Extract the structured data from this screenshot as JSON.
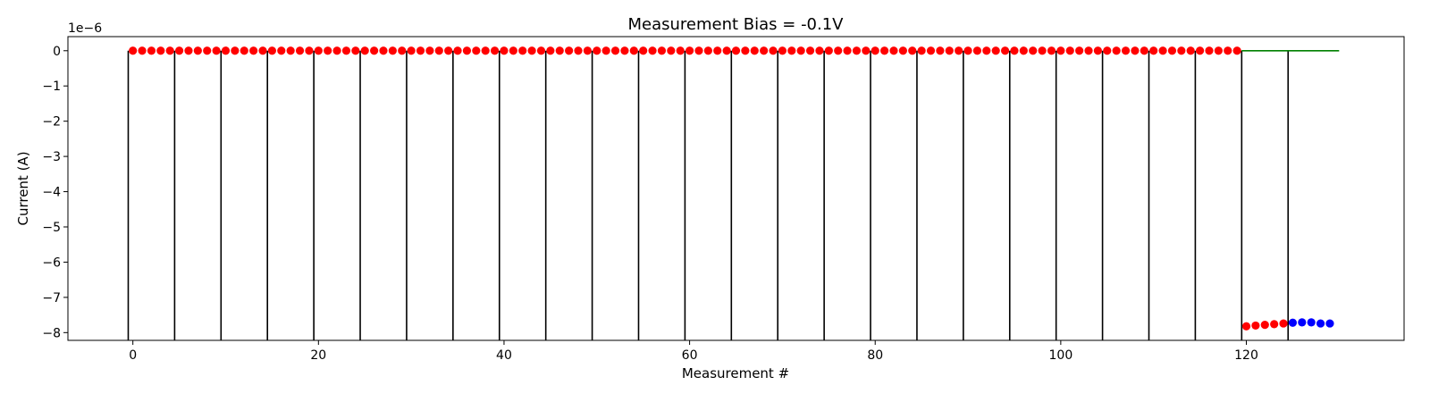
{
  "chart_data": {
    "type": "scatter",
    "title": "Measurement Bias = -0.1V",
    "xlabel": "Measurement #",
    "ylabel": "Current (A)",
    "y_offset_label": "1e−6",
    "y_scale_exponent": -6,
    "xlim": [
      -7,
      137
    ],
    "ylim": [
      -8.22,
      0.4
    ],
    "x_ticks": [
      0,
      20,
      40,
      60,
      80,
      100,
      120
    ],
    "x_tick_labels": [
      "0",
      "20",
      "40",
      "60",
      "80",
      "100",
      "120"
    ],
    "y_ticks": [
      0,
      -1,
      -2,
      -3,
      -4,
      -5,
      -6,
      -7,
      -8
    ],
    "y_tick_labels": [
      "0",
      "−1",
      "−2",
      "−3",
      "−4",
      "−5",
      "−6",
      "−7",
      "−8"
    ],
    "grid": false,
    "vertical_lines": {
      "x": [
        -0.5,
        4.5,
        9.5,
        14.5,
        19.5,
        24.5,
        29.5,
        34.5,
        39.5,
        44.5,
        49.5,
        54.5,
        59.5,
        64.5,
        69.5,
        74.5,
        79.5,
        84.5,
        89.5,
        94.5,
        99.5,
        104.5,
        109.5,
        114.5,
        119.5,
        124.5
      ],
      "y_range": [
        -8.22,
        0
      ],
      "color": "#000000"
    },
    "reference_line": {
      "x": [
        119.5,
        130
      ],
      "y": [
        0,
        0
      ],
      "color": "#008000"
    },
    "series": [
      {
        "color": "#ff0000",
        "x": [
          0,
          1,
          2,
          3,
          4,
          5,
          6,
          7,
          8,
          9,
          10,
          11,
          12,
          13,
          14,
          15,
          16,
          17,
          18,
          19,
          20,
          21,
          22,
          23,
          24,
          25,
          26,
          27,
          28,
          29,
          30,
          31,
          32,
          33,
          34,
          35,
          36,
          37,
          38,
          39,
          40,
          41,
          42,
          43,
          44,
          45,
          46,
          47,
          48,
          49,
          50,
          51,
          52,
          53,
          54,
          55,
          56,
          57,
          58,
          59,
          60,
          61,
          62,
          63,
          64,
          65,
          66,
          67,
          68,
          69,
          70,
          71,
          72,
          73,
          74,
          75,
          76,
          77,
          78,
          79,
          80,
          81,
          82,
          83,
          84,
          85,
          86,
          87,
          88,
          89,
          90,
          91,
          92,
          93,
          94,
          95,
          96,
          97,
          98,
          99,
          100,
          101,
          102,
          103,
          104,
          105,
          106,
          107,
          108,
          109,
          110,
          111,
          112,
          113,
          114,
          115,
          116,
          117,
          118,
          119
        ],
        "y": [
          0,
          0,
          0,
          0,
          0,
          0,
          0,
          0,
          0,
          0,
          0,
          0,
          0,
          0,
          0,
          0,
          0,
          0,
          0,
          0,
          0,
          0,
          0,
          0,
          0,
          0,
          0,
          0,
          0,
          0,
          0,
          0,
          0,
          0,
          0,
          0,
          0,
          0,
          0,
          0,
          0,
          0,
          0,
          0,
          0,
          0,
          0,
          0,
          0,
          0,
          0,
          0,
          0,
          0,
          0,
          0,
          0,
          0,
          0,
          0,
          0,
          0,
          0,
          0,
          0,
          0,
          0,
          0,
          0,
          0,
          0,
          0,
          0,
          0,
          0,
          0,
          0,
          0,
          0,
          0,
          0,
          0,
          0,
          0,
          0,
          0,
          0,
          0,
          0,
          0,
          0,
          0,
          0,
          0,
          0,
          0,
          0,
          0,
          0,
          0,
          0,
          0,
          0,
          0,
          0,
          0,
          0,
          0,
          0,
          0,
          0,
          0,
          0,
          0,
          0,
          0,
          0,
          0,
          0,
          0
        ]
      },
      {
        "color": "#ff0000",
        "x": [
          120,
          121,
          122,
          123,
          124
        ],
        "y": [
          -7.82,
          -7.8,
          -7.78,
          -7.76,
          -7.74
        ]
      },
      {
        "color": "#0000ff",
        "x": [
          125,
          126,
          127,
          128,
          129
        ],
        "y": [
          -7.72,
          -7.71,
          -7.71,
          -7.74,
          -7.74
        ]
      }
    ]
  }
}
